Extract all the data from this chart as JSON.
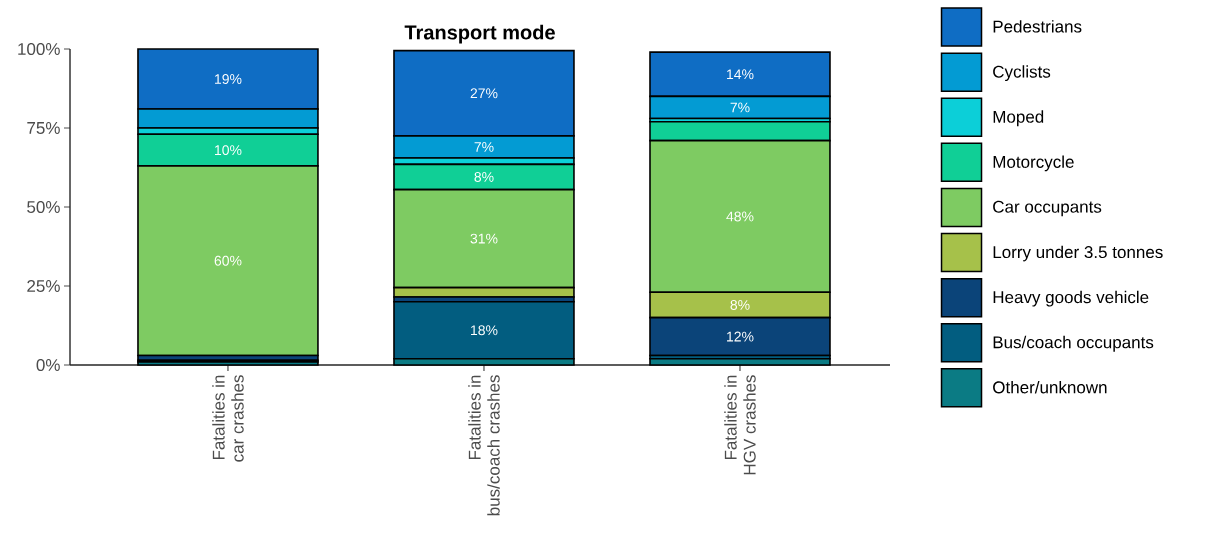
{
  "chart_data": {
    "type": "bar",
    "title": "Transport mode",
    "stacked": true,
    "legend": "right",
    "categories": [
      "Fatalities in\ncar crashes",
      "Fatalities in\nbus/coach crashes",
      "Fatalities in\nHGV crashes"
    ],
    "ylim": [
      0,
      100
    ],
    "yticks": [
      {
        "value": 0,
        "label": "0%"
      },
      {
        "value": 25,
        "label": "25%"
      },
      {
        "value": 50,
        "label": "50%"
      },
      {
        "value": 75,
        "label": "75%"
      },
      {
        "value": 100,
        "label": "100%"
      }
    ],
    "series": [
      {
        "name": "Other/unknown",
        "color": "#0b7b84",
        "values": [
          1,
          2,
          2
        ],
        "value_labels": [
          null,
          null,
          null
        ]
      },
      {
        "name": "Bus/coach occupants",
        "color": "#025d80",
        "values": [
          0.5,
          18,
          1
        ],
        "value_labels": [
          null,
          "18%",
          null
        ]
      },
      {
        "name": "Heavy goods vehicle",
        "color": "#0b4479",
        "values": [
          1.5,
          1.5,
          12
        ],
        "value_labels": [
          null,
          null,
          "12%"
        ]
      },
      {
        "name": "Lorry under 3.5 tonnes",
        "color": "#a6c14a",
        "values": [
          null,
          3,
          8
        ],
        "value_labels": [
          null,
          null,
          "8%"
        ]
      },
      {
        "name": "Car occupants",
        "color": "#7ecb62",
        "values": [
          60,
          31,
          48
        ],
        "value_labels": [
          "60%",
          "31%",
          "48%"
        ]
      },
      {
        "name": "Motorcycle",
        "color": "#10cf96",
        "values": [
          10,
          8,
          6
        ],
        "value_labels": [
          "10%",
          "8%",
          null
        ]
      },
      {
        "name": "Moped",
        "color": "#0ccfd8",
        "values": [
          2,
          2,
          1
        ],
        "value_labels": [
          null,
          null,
          null
        ]
      },
      {
        "name": "Cyclists",
        "color": "#039bd3",
        "values": [
          6,
          7,
          7
        ],
        "value_labels": [
          null,
          "7%",
          "7%"
        ]
      },
      {
        "name": "Pedestrians",
        "color": "#0f6dc4",
        "values": [
          19,
          27,
          14
        ],
        "value_labels": [
          "19%",
          "27%",
          "14%"
        ]
      }
    ]
  }
}
